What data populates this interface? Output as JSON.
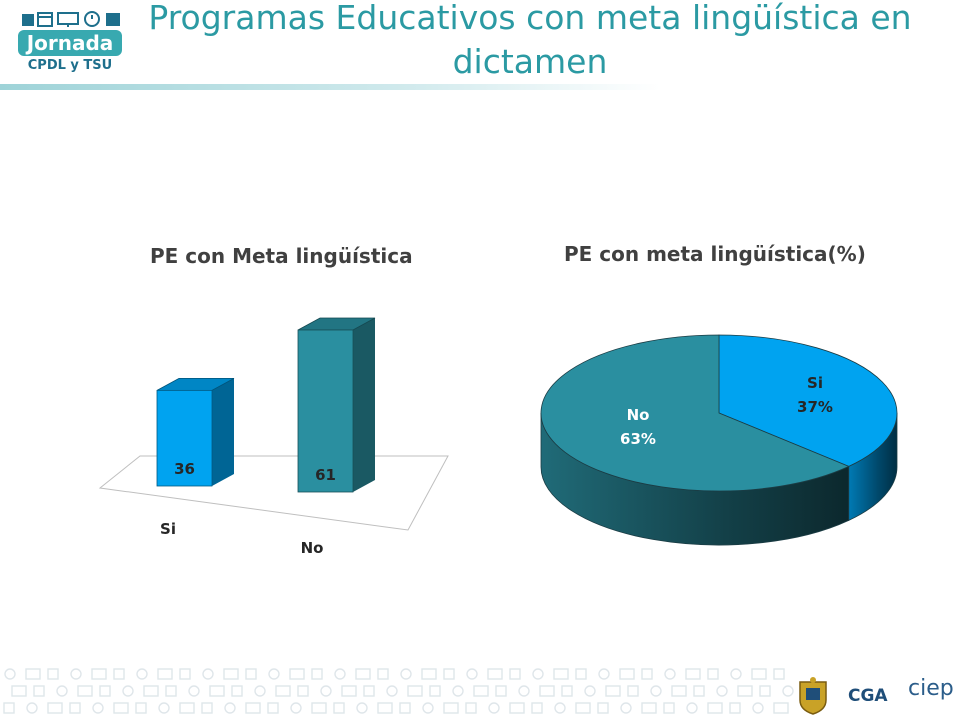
{
  "logo": {
    "word": "Jornada",
    "sub": "CPDL y TSU",
    "icons": "logo-icons"
  },
  "slide": {
    "title": "Programas Educativos con meta lingüística en dictamen"
  },
  "footer": {
    "cga": "CGA",
    "ciep": "ciep"
  },
  "chart_data": [
    {
      "type": "bar",
      "title": "PE con Meta lingüística",
      "categories": [
        "Si",
        "No"
      ],
      "values": [
        36,
        61
      ],
      "colors": [
        "#00a3f0",
        "#2a8fa0"
      ],
      "ylim": [
        0,
        70
      ],
      "grid": false,
      "legend": "none"
    },
    {
      "type": "pie",
      "title": "PE con meta lingüística(%)",
      "labels": [
        "Si",
        "No"
      ],
      "values": [
        37,
        63
      ],
      "value_labels": [
        "37%",
        "63%"
      ],
      "colors": [
        "#00a3f0",
        "#2a8fa0"
      ],
      "legend": "none"
    }
  ]
}
